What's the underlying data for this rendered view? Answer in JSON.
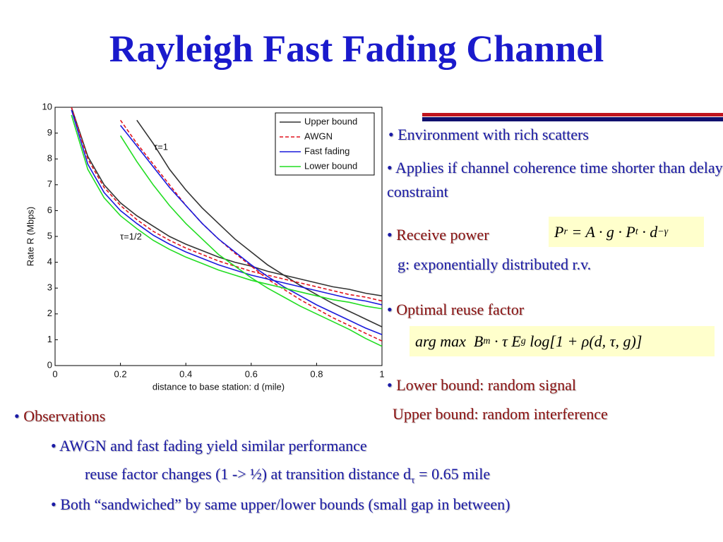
{
  "title": "Rayleigh Fast Fading Channel",
  "chart_data": {
    "type": "line",
    "y_label": "Rate R (Mbps)",
    "x_label": "distance to base station: d (mile)",
    "groups": [
      "τ=1",
      "τ=1/2"
    ],
    "x": [
      0.05,
      0.1,
      0.15,
      0.2,
      0.25,
      0.3,
      0.35,
      0.4,
      0.45,
      0.5,
      0.55,
      0.6,
      0.65,
      0.7,
      0.75,
      0.8,
      0.85,
      0.9,
      0.95,
      1
    ],
    "xlim": [
      0,
      1
    ],
    "xticks": [
      0,
      0.2,
      0.4,
      0.6,
      0.8,
      1
    ],
    "ylim": [
      0,
      10
    ],
    "yticks": [
      0,
      1,
      2,
      3,
      4,
      5,
      6,
      7,
      8,
      9,
      10
    ],
    "series": [
      {
        "name": "Upper bound",
        "color": "#333333",
        "dashed": false,
        "values": [
          [
            null,
            null,
            null,
            null,
            9.5,
            8.6,
            7.6,
            6.8,
            6.1,
            5.5,
            4.9,
            4.4,
            3.9,
            3.5,
            3.1,
            2.75,
            2.4,
            2.1,
            1.8,
            1.5
          ],
          [
            10,
            8.1,
            7.0,
            6.3,
            5.8,
            5.4,
            5.0,
            4.7,
            4.45,
            4.2,
            4.0,
            3.85,
            3.65,
            3.5,
            3.35,
            3.2,
            3.05,
            2.95,
            2.8,
            2.7
          ]
        ]
      },
      {
        "name": "AWGN",
        "color": "#e0141e",
        "dashed": true,
        "values": [
          [
            null,
            null,
            null,
            9.5,
            8.6,
            7.8,
            7.0,
            6.2,
            5.5,
            4.9,
            4.35,
            3.85,
            3.35,
            2.95,
            2.55,
            2.2,
            1.85,
            1.55,
            1.25,
            0.95
          ],
          [
            10,
            8.0,
            6.9,
            6.2,
            5.65,
            5.2,
            4.85,
            4.55,
            4.3,
            4.05,
            3.85,
            3.65,
            3.5,
            3.35,
            3.2,
            3.05,
            2.9,
            2.75,
            2.65,
            2.5
          ]
        ]
      },
      {
        "name": "Fast fading",
        "color": "#1a1adc",
        "dashed": false,
        "values": [
          [
            null,
            null,
            null,
            9.3,
            8.5,
            7.7,
            6.9,
            6.2,
            5.5,
            4.9,
            4.4,
            3.9,
            3.45,
            3.05,
            2.7,
            2.35,
            2.05,
            1.75,
            1.45,
            1.2
          ],
          [
            9.9,
            7.8,
            6.7,
            6.0,
            5.5,
            5.05,
            4.7,
            4.4,
            4.15,
            3.9,
            3.7,
            3.5,
            3.35,
            3.2,
            3.05,
            2.9,
            2.75,
            2.6,
            2.5,
            2.35
          ]
        ]
      },
      {
        "name": "Lower bound",
        "color": "#22dd22",
        "dashed": false,
        "values": [
          [
            null,
            null,
            null,
            8.9,
            7.9,
            7.0,
            6.2,
            5.5,
            4.9,
            4.3,
            3.85,
            3.4,
            3.0,
            2.65,
            2.3,
            2.0,
            1.7,
            1.4,
            1.05,
            0.75
          ],
          [
            9.7,
            7.6,
            6.5,
            5.8,
            5.3,
            4.85,
            4.5,
            4.2,
            3.95,
            3.7,
            3.5,
            3.3,
            3.15,
            3.0,
            2.85,
            2.7,
            2.55,
            2.45,
            2.3,
            2.2
          ]
        ]
      }
    ]
  },
  "bullets": {
    "environment": "Environment with rich scatters",
    "applies": "Applies if channel coherence time shorter than delay constraint",
    "receive_power": "Receive power",
    "power_formula": [
      {
        "text": "P"
      },
      {
        "text": "r",
        "style": "sub"
      },
      {
        "text": " = A · g · P"
      },
      {
        "text": "t",
        "style": "sub"
      },
      {
        "text": " · d"
      },
      {
        "text": "−γ",
        "style": "sup"
      }
    ],
    "g_note": "g: exponentially distributed r.v.",
    "optimal_reuse": "Optimal reuse factor",
    "reuse_formula": [
      {
        "text": "arg max  B"
      },
      {
        "text": "m",
        "style": "sub"
      },
      {
        "text": " · τ E"
      },
      {
        "text": "g",
        "style": "sub"
      },
      {
        "text": " log[1 + ρ(d, τ, g)]"
      }
    ],
    "lower_bound": "Lower bound: random signal",
    "upper_bound": "Upper bound: random interference"
  },
  "observations": {
    "heading": "Observations",
    "item1": "AWGN and fast fading yield similar performance",
    "item1b": [
      {
        "text": "reuse factor changes (1 -> ½) at transition distance d"
      },
      {
        "text": "τ",
        "style": "sub"
      },
      {
        "text": " = 0.65 mile"
      }
    ],
    "item2": "Both “sandwiched” by same upper/lower bounds (small gap in between)"
  }
}
